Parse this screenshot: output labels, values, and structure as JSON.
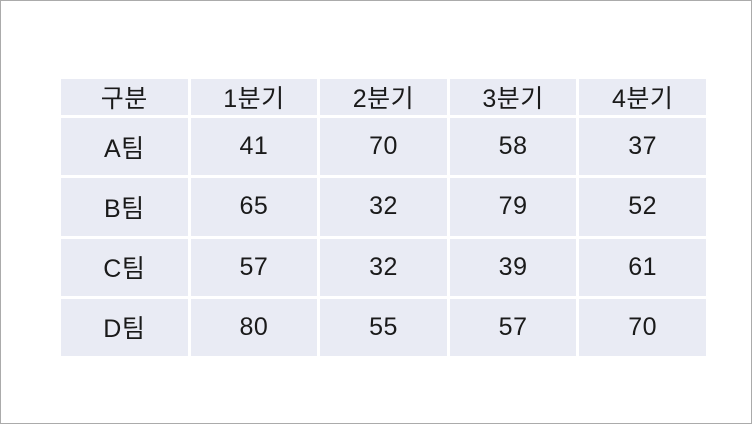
{
  "slide": {
    "background": "#ffffff",
    "border_color": "#ababab"
  },
  "chart_data": {
    "type": "table",
    "columns": [
      "구분",
      "1분기",
      "2분기",
      "3분기",
      "4분기"
    ],
    "rows": [
      {
        "label": "A팀",
        "values": [
          41,
          70,
          58,
          37
        ]
      },
      {
        "label": "B팀",
        "values": [
          65,
          32,
          79,
          52
        ]
      },
      {
        "label": "C팀",
        "values": [
          57,
          32,
          39,
          61
        ]
      },
      {
        "label": "D팀",
        "values": [
          80,
          55,
          57,
          70
        ]
      }
    ],
    "layout": {
      "grid": "off",
      "legend": "none",
      "cell_fill": "#e9ebf4",
      "gap_color": "#ffffff",
      "text_color": "#1a1a1a"
    }
  }
}
